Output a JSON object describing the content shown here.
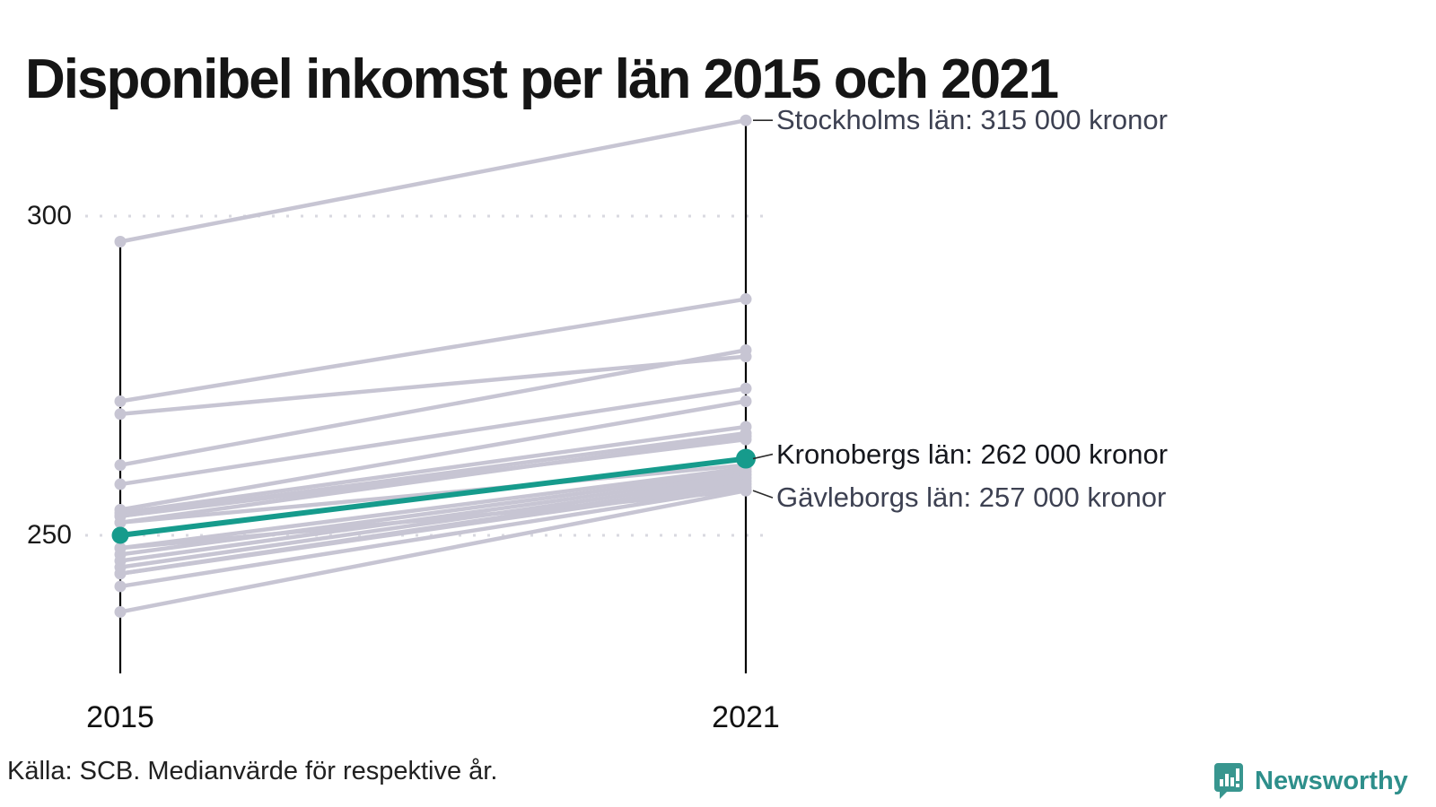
{
  "title": "Disponibel inkomst per län 2015 och 2021",
  "footer": {
    "source": "Källa: SCB. Medianvärde för respektive år."
  },
  "logo": {
    "text": "Newsworthy",
    "icon": "newsworthy-speech-bubble-bar-chart-icon",
    "text_color": "#2e8f8b",
    "icon_color": "#38968f"
  },
  "chart_data": {
    "type": "line",
    "subtype": "slope-chart",
    "x_categories": [
      "2015",
      "2021"
    ],
    "y_ticks": [
      {
        "value": 300,
        "label": "300"
      },
      {
        "value": 250,
        "label": "250"
      }
    ],
    "y_axis_range": [
      228,
      316
    ],
    "grid": "dotted-horizontal",
    "colors": {
      "line": "#c7c5d3",
      "highlight": "#169b8c",
      "axis": "#000000",
      "grid_dots": "#d9d9e0",
      "connector": "#2b2b2b"
    },
    "annotations": [
      {
        "text": "Stockholms län: 315 000 kronor",
        "series_index": 0,
        "color": "#3d4152"
      },
      {
        "text": "Kronobergs län: 262 000 kronor",
        "series_index": 10,
        "color": "#15171d"
      },
      {
        "text": "Gävleborgs län: 257 000 kronor",
        "series_index": 18,
        "color": "#3d4152"
      }
    ],
    "series": [
      {
        "name": "Stockholms län",
        "values": [
          296,
          315
        ],
        "labeled": true
      },
      {
        "name": "",
        "values": [
          271,
          287
        ]
      },
      {
        "name": "",
        "values": [
          269,
          278
        ]
      },
      {
        "name": "",
        "values": [
          261,
          279
        ]
      },
      {
        "name": "",
        "values": [
          258,
          273
        ]
      },
      {
        "name": "",
        "values": [
          254,
          271
        ]
      },
      {
        "name": "",
        "values": [
          253.5,
          267
        ]
      },
      {
        "name": "",
        "values": [
          253,
          266
        ]
      },
      {
        "name": "",
        "values": [
          253,
          265
        ]
      },
      {
        "name": "",
        "values": [
          252,
          265.5
        ]
      },
      {
        "name": "Kronobergs län",
        "values": [
          250,
          262
        ],
        "labeled": true,
        "highlight": true
      },
      {
        "name": "",
        "values": [
          252,
          261
        ]
      },
      {
        "name": "",
        "values": [
          248,
          260.5
        ]
      },
      {
        "name": "",
        "values": [
          247,
          260
        ]
      },
      {
        "name": "",
        "values": [
          246,
          259.5
        ]
      },
      {
        "name": "",
        "values": [
          245,
          259
        ]
      },
      {
        "name": "",
        "values": [
          244,
          258.5
        ]
      },
      {
        "name": "",
        "values": [
          244,
          258
        ]
      },
      {
        "name": "Gävleborgs län",
        "values": [
          248,
          257
        ],
        "labeled": true
      },
      {
        "name": "",
        "values": [
          242,
          257.5
        ]
      },
      {
        "name": "",
        "values": [
          238,
          257
        ]
      }
    ]
  }
}
